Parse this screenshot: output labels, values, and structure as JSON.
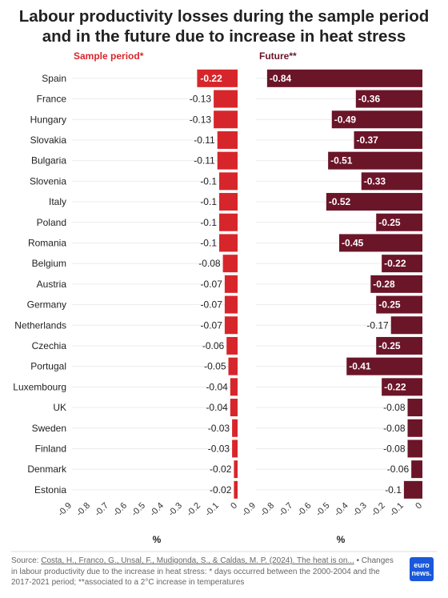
{
  "title": {
    "line1": "Labour productivity losses during the sample period",
    "line2": "and in the future due to increase in heat stress"
  },
  "chart_data": {
    "type": "bar",
    "orientation": "horizontal",
    "categories": [
      "Spain",
      "France",
      "Hungary",
      "Slovakia",
      "Bulgaria",
      "Slovenia",
      "Italy",
      "Poland",
      "Romania",
      "Belgium",
      "Austria",
      "Germany",
      "Netherlands",
      "Czechia",
      "Portugal",
      "Luxembourg",
      "UK",
      "Sweden",
      "Finland",
      "Denmark",
      "Estonia"
    ],
    "xlim": [
      -0.9,
      0
    ],
    "ticks": [
      "-0.9",
      "-0.8",
      "-0.7",
      "-0.6",
      "-0.5",
      "-0.4",
      "-0.3",
      "-0.2",
      "-0.1",
      "0"
    ],
    "xlabel": "%",
    "grid": "horizontal",
    "series": [
      {
        "name": "Sample period*",
        "color": "#d7262b",
        "values": [
          -0.22,
          -0.13,
          -0.13,
          -0.11,
          -0.11,
          -0.1,
          -0.1,
          -0.1,
          -0.1,
          -0.08,
          -0.07,
          -0.07,
          -0.07,
          -0.06,
          -0.05,
          -0.04,
          -0.04,
          -0.03,
          -0.03,
          -0.02,
          -0.02
        ]
      },
      {
        "name": "Future**",
        "color": "#6b1529",
        "values": [
          -0.84,
          -0.36,
          -0.49,
          -0.37,
          -0.51,
          -0.33,
          -0.52,
          -0.25,
          -0.45,
          -0.22,
          -0.28,
          -0.25,
          -0.17,
          -0.25,
          -0.41,
          -0.22,
          -0.08,
          -0.08,
          -0.08,
          -0.06,
          -0.1
        ]
      }
    ]
  },
  "footer": {
    "source_label": "Source:",
    "source_link": "Costa, H., Franco, G., Unsal, F., Mudigonda, S., & Caldas, M. P. (2024). The heat is on...",
    "note": "• Changes in labour productivity due to the increase in heat stress: * days occurred between the 2000-2004 and the 2017-2021 period; **associated to a 2°C increase in temperatures"
  },
  "logo": {
    "line1": "euro",
    "line2": "news."
  }
}
